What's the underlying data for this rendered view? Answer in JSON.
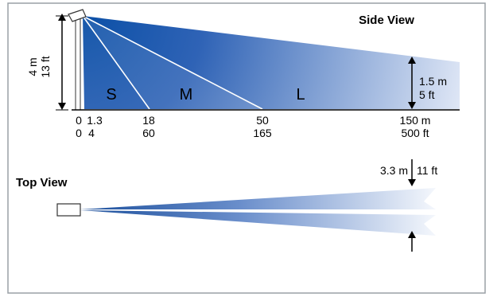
{
  "side_view": {
    "title": "Side View",
    "pole_height": {
      "metric": "4 m",
      "imperial": "13 ft"
    },
    "zones": {
      "short": "S",
      "medium": "M",
      "long": "L"
    },
    "target_height": {
      "metric": "1.5 m",
      "imperial": "5 ft"
    },
    "distance_ticks": [
      {
        "metric": "0",
        "imperial": "0"
      },
      {
        "metric": "1.3",
        "imperial": "4"
      },
      {
        "metric": "18",
        "imperial": "60"
      },
      {
        "metric": "50",
        "imperial": "165"
      },
      {
        "metric": "150 m",
        "imperial": "500 ft"
      }
    ]
  },
  "top_view": {
    "title": "Top View",
    "spread": {
      "metric": "3.3 m",
      "imperial": "11 ft"
    }
  },
  "colors": {
    "beam_dark": "#0a4fa6",
    "beam_light": "#eef2fb",
    "frame": "#9aa0a6"
  }
}
